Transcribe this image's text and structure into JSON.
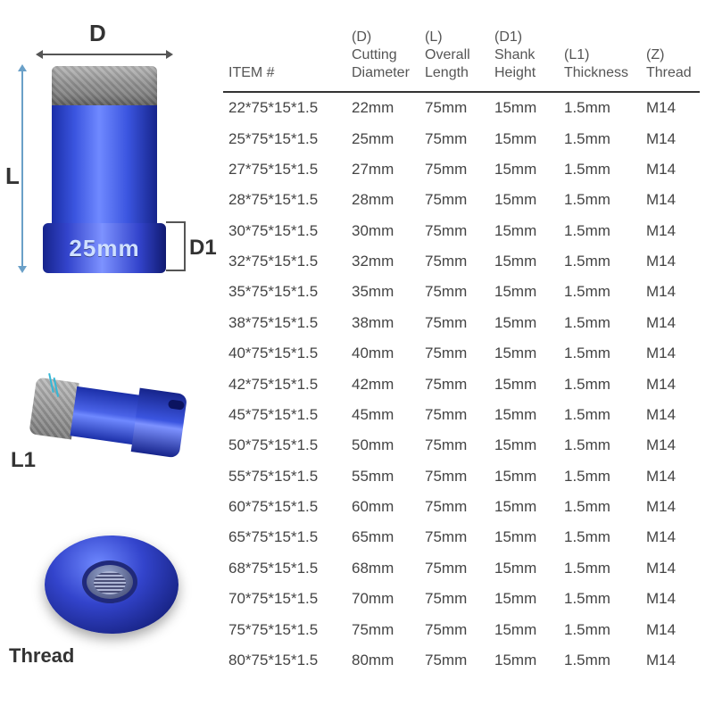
{
  "background_color": "#ffffff",
  "text_color": "#444444",
  "accent_blue": "#2f46d1",
  "arrow_color": "#6aa0c8",
  "header_rule_color": "#333333",
  "font_family": "Arial, Helvetica, sans-serif",
  "diagram": {
    "D_label": "D",
    "L_label": "L",
    "D1_label": "D1",
    "L1_label": "L1",
    "Thread_label": "Thread",
    "size_badge": "25mm"
  },
  "table": {
    "columns": [
      {
        "key": "item",
        "code": "",
        "label": "ITEM #",
        "class": "col-item"
      },
      {
        "key": "d",
        "code": "(D)",
        "label": "Cutting Diameter",
        "class": "col-d"
      },
      {
        "key": "l",
        "code": "(L)",
        "label": "Overall Length",
        "class": "col-l"
      },
      {
        "key": "d1",
        "code": "(D1)",
        "label": "Shank Height",
        "class": "col-d1"
      },
      {
        "key": "l1",
        "code": "(L1)",
        "label": "Thickness",
        "class": "col-l1"
      },
      {
        "key": "z",
        "code": "(Z)",
        "label": "Thread",
        "class": "col-z"
      }
    ],
    "rows": [
      {
        "item": "22*75*15*1.5",
        "d": "22mm",
        "l": "75mm",
        "d1": "15mm",
        "l1": "1.5mm",
        "z": "M14"
      },
      {
        "item": "25*75*15*1.5",
        "d": "25mm",
        "l": "75mm",
        "d1": "15mm",
        "l1": "1.5mm",
        "z": "M14"
      },
      {
        "item": "27*75*15*1.5",
        "d": "27mm",
        "l": "75mm",
        "d1": "15mm",
        "l1": "1.5mm",
        "z": "M14"
      },
      {
        "item": "28*75*15*1.5",
        "d": "28mm",
        "l": "75mm",
        "d1": "15mm",
        "l1": "1.5mm",
        "z": "M14"
      },
      {
        "item": "30*75*15*1.5",
        "d": "30mm",
        "l": "75mm",
        "d1": "15mm",
        "l1": "1.5mm",
        "z": "M14"
      },
      {
        "item": "32*75*15*1.5",
        "d": "32mm",
        "l": "75mm",
        "d1": "15mm",
        "l1": "1.5mm",
        "z": "M14"
      },
      {
        "item": "35*75*15*1.5",
        "d": "35mm",
        "l": "75mm",
        "d1": "15mm",
        "l1": "1.5mm",
        "z": "M14"
      },
      {
        "item": "38*75*15*1.5",
        "d": "38mm",
        "l": "75mm",
        "d1": "15mm",
        "l1": "1.5mm",
        "z": "M14"
      },
      {
        "item": "40*75*15*1.5",
        "d": "40mm",
        "l": "75mm",
        "d1": "15mm",
        "l1": "1.5mm",
        "z": "M14"
      },
      {
        "item": "42*75*15*1.5",
        "d": "42mm",
        "l": "75mm",
        "d1": "15mm",
        "l1": "1.5mm",
        "z": "M14"
      },
      {
        "item": "45*75*15*1.5",
        "d": "45mm",
        "l": "75mm",
        "d1": "15mm",
        "l1": "1.5mm",
        "z": "M14"
      },
      {
        "item": "50*75*15*1.5",
        "d": "50mm",
        "l": "75mm",
        "d1": "15mm",
        "l1": "1.5mm",
        "z": "M14"
      },
      {
        "item": "55*75*15*1.5",
        "d": "55mm",
        "l": "75mm",
        "d1": "15mm",
        "l1": "1.5mm",
        "z": "M14"
      },
      {
        "item": "60*75*15*1.5",
        "d": "60mm",
        "l": "75mm",
        "d1": "15mm",
        "l1": "1.5mm",
        "z": "M14"
      },
      {
        "item": "65*75*15*1.5",
        "d": "65mm",
        "l": "75mm",
        "d1": "15mm",
        "l1": "1.5mm",
        "z": "M14"
      },
      {
        "item": "68*75*15*1.5",
        "d": "68mm",
        "l": "75mm",
        "d1": "15mm",
        "l1": "1.5mm",
        "z": "M14"
      },
      {
        "item": "70*75*15*1.5",
        "d": "70mm",
        "l": "75mm",
        "d1": "15mm",
        "l1": "1.5mm",
        "z": "M14"
      },
      {
        "item": "75*75*15*1.5",
        "d": "75mm",
        "l": "75mm",
        "d1": "15mm",
        "l1": "1.5mm",
        "z": "M14"
      },
      {
        "item": "80*75*15*1.5",
        "d": "80mm",
        "l": "75mm",
        "d1": "15mm",
        "l1": "1.5mm",
        "z": "M14"
      }
    ]
  }
}
